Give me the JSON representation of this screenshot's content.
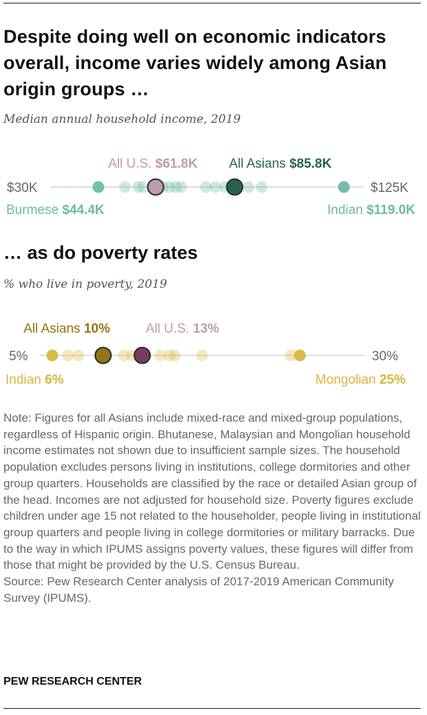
{
  "title": "Despite doing well on economic indicators overall, income varies widely among Asian origin groups …",
  "chart_data": [
    {
      "type": "dot",
      "subtitle": "Median annual household income, 2019",
      "unit": "$K",
      "range": [
        30,
        125
      ],
      "axis_labels": {
        "min": "$30K",
        "max": "$125K"
      },
      "colors": {
        "point": "#6bbaa6",
        "highlight": "#27624f",
        "us": "#c09aae",
        "axis": "#bbbbbb"
      },
      "points": [
        44.4,
        52.5,
        56.5,
        58.0,
        62.0,
        64.0,
        66.0,
        68.0,
        69.5,
        77.0,
        80.0,
        83.0,
        90.0,
        94.0,
        119.0
      ],
      "highlights": {
        "us": {
          "label": "All U.S.",
          "value_label": "$61.8K",
          "value": 61.8
        },
        "group": {
          "label": "All Asians",
          "value_label": "$85.8K",
          "value": 85.8
        }
      },
      "low_label": {
        "label": "Burmese",
        "value_label": "$44.4K",
        "value": 44.4
      },
      "high_label": {
        "label": "Indian",
        "value_label": "$119.0K",
        "value": 119.0
      }
    },
    {
      "type": "dot",
      "heading": "… as do poverty rates",
      "subtitle": "% who live in poverty, 2019",
      "unit": "%",
      "range": [
        5,
        30
      ],
      "axis_labels": {
        "min": "5%",
        "max": "30%"
      },
      "colors": {
        "point": "#d9b63c",
        "highlight": "#927514",
        "us": "#7a3a5c",
        "us_label": "#c09aae",
        "axis": "#bbbbbb"
      },
      "points": [
        6.0,
        7.2,
        8.0,
        11.5,
        12.1,
        13.0,
        14.3,
        15.0,
        15.4,
        17.5,
        24.3,
        25.0
      ],
      "highlights": {
        "group": {
          "label": "All Asians",
          "value_label": "10%",
          "value": 9.9
        },
        "us": {
          "label": "All U.S.",
          "value_label": "13%",
          "value": 12.9
        }
      },
      "low_label": {
        "label": "Indian",
        "value_label": "6%",
        "value": 6.0
      },
      "high_label": {
        "label": "Mongolian",
        "value_label": "25%",
        "value": 25.0
      }
    }
  ],
  "note": "Note: Figures for all Asians include mixed-race and mixed-group populations, regardless of Hispanic origin. Bhutanese, Malaysian and Mongolian household income estimates not shown due to insufficient sample sizes. The household population excludes persons living in institutions, college dormitories and other group quarters. Households are classified by the race or detailed Asian group of the head. Incomes are not adjusted for household size. Poverty figures exclude children under age 15 not related to the householder, people living in institutional group quarters and people living in college dormitories or military barracks. Due to the way in which IPUMS assigns poverty values, these figures will differ from those that might be provided by the U.S. Census Bureau.",
  "source": "Source: Pew Research Center analysis of 2017-2019 American Community Survey (IPUMS).",
  "footer": "PEW RESEARCH CENTER"
}
